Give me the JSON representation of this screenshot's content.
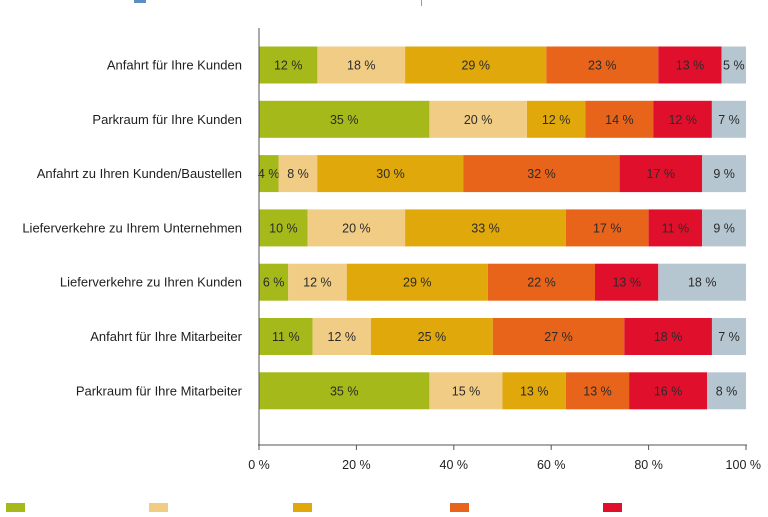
{
  "chart_data": {
    "type": "bar",
    "orientation": "horizontal",
    "stacked": true,
    "categories": [
      "Anfahrt für Ihre Kunden",
      "Parkraum für Ihre Kunden",
      "Anfahrt zu Ihren Kunden/Baustellen",
      "Lieferverkehre zu Ihrem Unternehmen",
      "Lieferverkehre zu Ihren Kunden",
      "Anfahrt für Ihre Mitarbeiter",
      "Parkraum für Ihre Mitarbeiter"
    ],
    "series": [
      {
        "color": "#a5b91b",
        "values": [
          12,
          35,
          4,
          10,
          6,
          11,
          35
        ]
      },
      {
        "color": "#f1cc85",
        "values": [
          18,
          20,
          8,
          20,
          12,
          12,
          15
        ]
      },
      {
        "color": "#e1a80c",
        "values": [
          29,
          12,
          30,
          33,
          29,
          25,
          13
        ]
      },
      {
        "color": "#e8641b",
        "values": [
          23,
          14,
          32,
          17,
          22,
          27,
          13
        ]
      },
      {
        "color": "#e0102d",
        "values": [
          13,
          12,
          17,
          11,
          13,
          18,
          16
        ]
      },
      {
        "color": "#b6c6d1",
        "values": [
          5,
          7,
          9,
          9,
          18,
          7,
          8
        ]
      }
    ],
    "xlim": [
      0,
      100
    ],
    "xticks": [
      "0 %",
      "20 %",
      "40 %",
      "60 %",
      "80 %",
      "100 %"
    ],
    "value_suffix": " %",
    "grid": false,
    "legend": "bottom"
  }
}
